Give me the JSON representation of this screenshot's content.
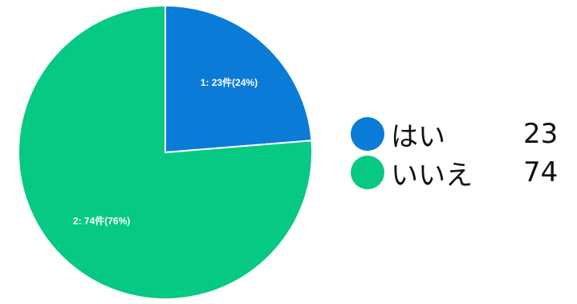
{
  "chart_data": {
    "type": "pie",
    "categories": [
      "1",
      "2"
    ],
    "values": [
      23,
      74
    ],
    "percents": [
      24,
      76
    ],
    "colors": [
      "#0b7bd8",
      "#06c983"
    ],
    "unit": "件",
    "slice_labels": [
      "1: 23件(24%)",
      "2: 74件(76%)"
    ],
    "start_angle_deg": 0,
    "direction": "clockwise",
    "legend_position": "right"
  },
  "legend": [
    {
      "label": "はい",
      "value": "23",
      "color": "#0b7bd8"
    },
    {
      "label": "いいえ",
      "value": "74",
      "color": "#06c983"
    }
  ]
}
